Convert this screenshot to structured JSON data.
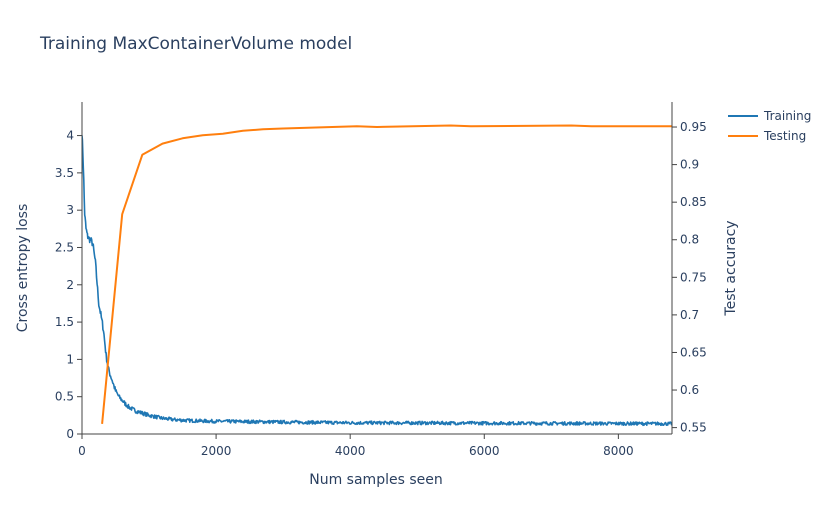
{
  "chart_data": {
    "type": "line",
    "title": "Training MaxContainerVolume model",
    "xlabel": "Num samples seen",
    "ylabel_left": "Cross entropy loss",
    "ylabel_right": "Test accuracy",
    "xlim": [
      0,
      8800
    ],
    "ylim_left": [
      0,
      4.45
    ],
    "ylim_right": [
      0.5415,
      0.9833
    ],
    "x_ticks": [
      0,
      2000,
      4000,
      6000,
      8000
    ],
    "y_left_ticks": [
      0,
      0.5,
      1,
      1.5,
      2,
      2.5,
      3,
      3.5,
      4
    ],
    "y_right_ticks": [
      0.55,
      0.6,
      0.65,
      0.7,
      0.75,
      0.8,
      0.85,
      0.9,
      0.95
    ],
    "grid": false,
    "legend_position": "top-right",
    "colors": {
      "Training": "#1f77b4",
      "Testing": "#ff7f0e"
    },
    "series": [
      {
        "name": "Training",
        "axis": "left",
        "noise": 0.03,
        "x": [
          0,
          20,
          40,
          60,
          80,
          100,
          130,
          160,
          200,
          250,
          280,
          320,
          360,
          400,
          450,
          500,
          550,
          600,
          650,
          700,
          800,
          900,
          1000,
          1100,
          1200,
          1400,
          1600,
          1800,
          2000,
          2500,
          3000,
          3500,
          4000,
          5000,
          6000,
          7000,
          8000,
          8800
        ],
        "y": [
          4.05,
          3.6,
          2.95,
          2.75,
          2.66,
          2.62,
          2.6,
          2.55,
          2.3,
          1.75,
          1.6,
          1.4,
          1.05,
          0.85,
          0.72,
          0.58,
          0.5,
          0.45,
          0.4,
          0.36,
          0.31,
          0.28,
          0.25,
          0.23,
          0.21,
          0.19,
          0.18,
          0.175,
          0.17,
          0.165,
          0.16,
          0.155,
          0.15,
          0.148,
          0.145,
          0.143,
          0.14,
          0.138
        ]
      },
      {
        "name": "Testing",
        "axis": "right",
        "x": [
          300,
          600,
          900,
          1200,
          1500,
          1800,
          2100,
          2400,
          2700,
          3000,
          4100,
          4400,
          5500,
          5800,
          7300,
          7600,
          8800
        ],
        "y": [
          0.555,
          0.834,
          0.913,
          0.928,
          0.935,
          0.939,
          0.941,
          0.945,
          0.947,
          0.948,
          0.951,
          0.95,
          0.952,
          0.951,
          0.952,
          0.951,
          0.951
        ]
      }
    ]
  }
}
